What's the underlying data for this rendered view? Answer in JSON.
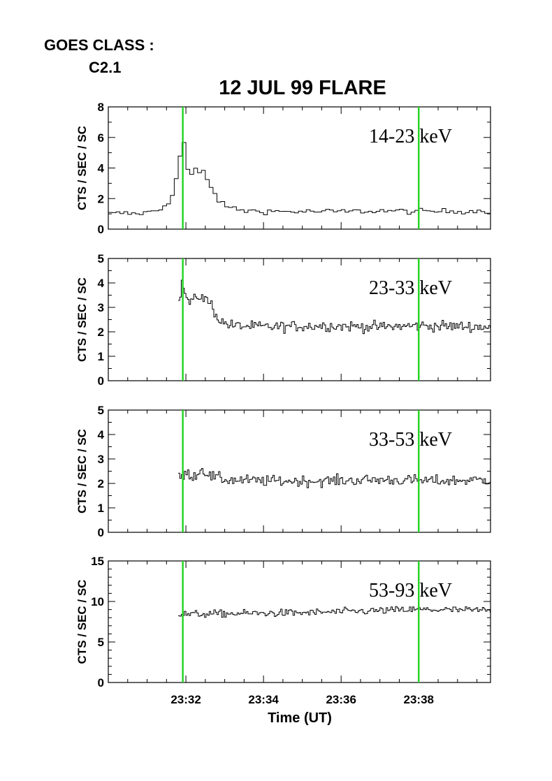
{
  "header": {
    "goes_label": "GOES CLASS :",
    "goes_value": "C2.1"
  },
  "chart_data": {
    "type": "line",
    "title": "12 JUL 99 FLARE",
    "xlabel": "Time (UT)",
    "x_unit": "minutes after 23:00 UT",
    "xlim": [
      30.0,
      39.85
    ],
    "xticks": [
      32,
      34,
      36,
      38
    ],
    "xtick_labels": [
      "23:32",
      "23:34",
      "23:36",
      "23:38"
    ],
    "markers": {
      "color": "#1fd41f",
      "x": [
        31.92,
        38.0
      ]
    },
    "line_color": "#000000",
    "panels": [
      {
        "label": "14-23 keV",
        "ylabel": "CTS / SEC / SC",
        "ylim": [
          0,
          8
        ],
        "yticks": [
          0,
          2,
          4,
          6,
          8
        ],
        "noise": 0.18,
        "step_width": 0.1,
        "points": [
          [
            30.0,
            1.0
          ],
          [
            30.3,
            1.05
          ],
          [
            30.6,
            1.0
          ],
          [
            31.0,
            1.1
          ],
          [
            31.3,
            1.3
          ],
          [
            31.5,
            1.8
          ],
          [
            31.65,
            2.6
          ],
          [
            31.75,
            3.8
          ],
          [
            31.82,
            5.2
          ],
          [
            31.87,
            6.4
          ],
          [
            31.92,
            5.2
          ],
          [
            31.97,
            4.3
          ],
          [
            32.05,
            3.2
          ],
          [
            32.12,
            3.7
          ],
          [
            32.2,
            3.9
          ],
          [
            32.3,
            3.6
          ],
          [
            32.4,
            3.8
          ],
          [
            32.5,
            3.2
          ],
          [
            32.6,
            2.8
          ],
          [
            32.7,
            2.3
          ],
          [
            32.8,
            1.9
          ],
          [
            32.9,
            1.6
          ],
          [
            33.1,
            1.4
          ],
          [
            33.5,
            1.2
          ],
          [
            34.5,
            1.15
          ],
          [
            36.0,
            1.15
          ],
          [
            37.0,
            1.2
          ],
          [
            38.0,
            1.15
          ],
          [
            39.85,
            1.2
          ]
        ]
      },
      {
        "label": "23-33 keV",
        "ylabel": "CTS / SEC / SC",
        "ylim": [
          0,
          5
        ],
        "yticks": [
          0,
          1,
          2,
          3,
          4,
          5
        ],
        "noise": 0.22,
        "step_width": 0.04,
        "points": [
          [
            31.8,
            3.2
          ],
          [
            31.9,
            4.1
          ],
          [
            31.95,
            3.6
          ],
          [
            32.05,
            3.2
          ],
          [
            32.2,
            3.3
          ],
          [
            32.35,
            3.5
          ],
          [
            32.5,
            3.3
          ],
          [
            32.65,
            3.1
          ],
          [
            32.75,
            2.7
          ],
          [
            32.9,
            2.4
          ],
          [
            33.2,
            2.25
          ],
          [
            34.0,
            2.2
          ],
          [
            35.5,
            2.25
          ],
          [
            37.0,
            2.2
          ],
          [
            38.0,
            2.25
          ],
          [
            39.85,
            2.2
          ]
        ]
      },
      {
        "label": "33-53 keV",
        "ylabel": "CTS / SEC / SC",
        "ylim": [
          0,
          5
        ],
        "yticks": [
          0,
          1,
          2,
          3,
          4,
          5
        ],
        "noise": 0.22,
        "step_width": 0.04,
        "points": [
          [
            31.8,
            2.2
          ],
          [
            32.0,
            2.4
          ],
          [
            32.2,
            2.3
          ],
          [
            32.4,
            2.6
          ],
          [
            32.6,
            2.3
          ],
          [
            33.0,
            2.15
          ],
          [
            34.0,
            2.1
          ],
          [
            35.5,
            2.1
          ],
          [
            37.0,
            2.15
          ],
          [
            38.5,
            2.1
          ],
          [
            39.85,
            2.15
          ]
        ]
      },
      {
        "label": "53-93 keV",
        "ylabel": "CTS / SEC / SC",
        "ylim": [
          0,
          15
        ],
        "yticks": [
          0,
          5,
          10,
          15
        ],
        "noise": 0.45,
        "step_width": 0.04,
        "points": [
          [
            31.8,
            8.4
          ],
          [
            33.0,
            8.5
          ],
          [
            35.0,
            8.6
          ],
          [
            36.5,
            8.8
          ],
          [
            38.0,
            9.0
          ],
          [
            39.85,
            8.9
          ]
        ]
      }
    ]
  }
}
